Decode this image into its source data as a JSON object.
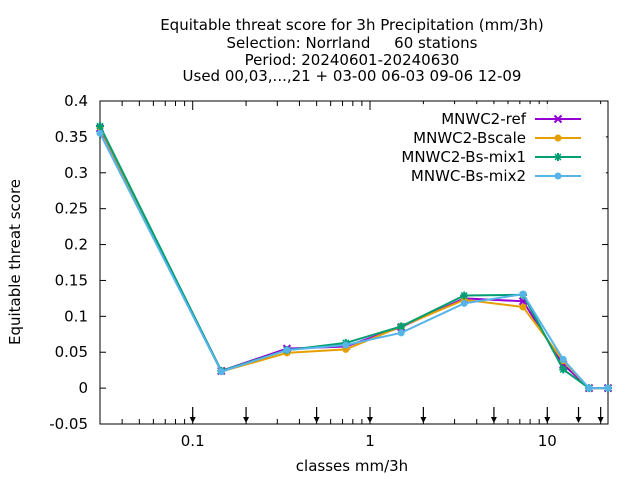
{
  "chart_data": {
    "type": "line",
    "title_lines": [
      "Equitable threat score  for 3h Precipitation (mm/3h)",
      "Selection: Norrland     60 stations",
      "Period: 20240601-20240630",
      "Used 00,03,...,21 + 03-00 06-03 09-06 12-09"
    ],
    "xlabel": "classes mm/3h",
    "ylabel": "Equitable threat score",
    "x_scale": "log",
    "xlim": [
      0.03,
      22
    ],
    "ylim": [
      -0.05,
      0.4
    ],
    "x_ticks": [
      {
        "value": 0.1,
        "label": "0.1"
      },
      {
        "value": 1,
        "label": "1"
      },
      {
        "value": 10,
        "label": "10"
      }
    ],
    "y_ticks": [
      {
        "value": -0.05,
        "label": "-0.05"
      },
      {
        "value": 0,
        "label": "0"
      },
      {
        "value": 0.05,
        "label": "0.05"
      },
      {
        "value": 0.1,
        "label": "0.1"
      },
      {
        "value": 0.15,
        "label": "0.15"
      },
      {
        "value": 0.2,
        "label": "0.2"
      },
      {
        "value": 0.25,
        "label": "0.25"
      },
      {
        "value": 0.3,
        "label": "0.3"
      },
      {
        "value": 0.35,
        "label": "0.35"
      },
      {
        "value": 0.4,
        "label": "0.4"
      }
    ],
    "class_threshold_arrows": [
      0.1,
      0.2,
      0.5,
      1,
      2,
      5,
      10,
      15,
      20
    ],
    "grid": false,
    "legend_position": "top-right",
    "x": [
      0.03,
      0.145,
      0.34,
      0.73,
      1.5,
      3.4,
      7.3,
      12.3,
      17.2,
      22
    ],
    "series": [
      {
        "name": "MNWC2-ref",
        "color": "#9400d3",
        "marker": "cross",
        "values": [
          0.362,
          0.024,
          0.055,
          0.058,
          0.085,
          0.125,
          0.121,
          0.033,
          0.0,
          0.0
        ]
      },
      {
        "name": "MNWC2-Bscale",
        "color": "#e69f00",
        "marker": "circle",
        "values": [
          0.363,
          0.023,
          0.049,
          0.054,
          0.086,
          0.123,
          0.113,
          0.038,
          0.0,
          0.0
        ]
      },
      {
        "name": "MNWC2-Bs-mix1",
        "color": "#009e73",
        "marker": "star",
        "values": [
          0.365,
          0.024,
          0.053,
          0.063,
          0.086,
          0.129,
          0.13,
          0.026,
          0.0,
          0.0
        ]
      },
      {
        "name": "MNWC-Bs-mix2",
        "color": "#56b4e9",
        "marker": "circle",
        "values": [
          0.355,
          0.023,
          0.053,
          0.06,
          0.077,
          0.118,
          0.131,
          0.04,
          0.0,
          0.0
        ]
      }
    ]
  }
}
